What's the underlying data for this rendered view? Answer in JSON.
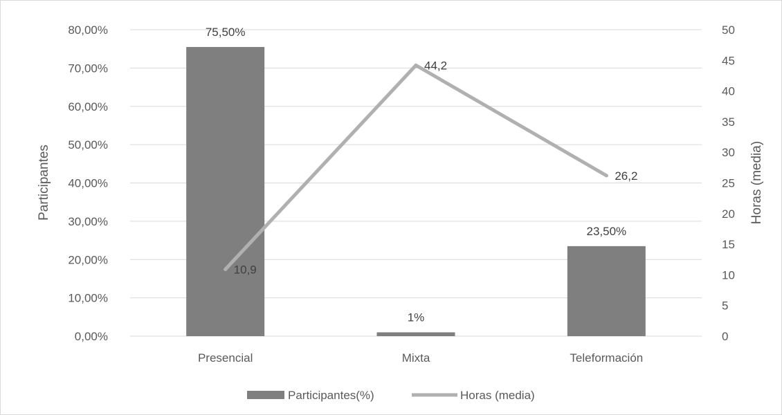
{
  "chart_data": {
    "type": "bar",
    "categories": [
      "Presencial",
      "Mixta",
      "Teleformación"
    ],
    "series": [
      {
        "name": "Participantes(%)",
        "type": "bar",
        "axis": "left",
        "values": [
          75.5,
          1,
          23.5
        ],
        "labels": [
          "75,50%",
          "1%",
          "23,50%"
        ],
        "color": "#7f7f7f"
      },
      {
        "name": "Horas (media)",
        "type": "line",
        "axis": "right",
        "values": [
          10.9,
          44.2,
          26.2
        ],
        "labels": [
          "10,9",
          "44,2",
          "26,2"
        ],
        "color": "#b0b0b0"
      }
    ],
    "title": "",
    "ylabel": "Participantes",
    "y2label": "Horas (media)",
    "ylim": [
      0,
      80
    ],
    "y2lim": [
      0,
      50
    ],
    "yticks": [
      "0,00%",
      "10,00%",
      "20,00%",
      "30,00%",
      "40,00%",
      "50,00%",
      "60,00%",
      "70,00%",
      "80,00%"
    ],
    "y2ticks": [
      "0",
      "5",
      "10",
      "15",
      "20",
      "25",
      "30",
      "35",
      "40",
      "45",
      "50"
    ],
    "grid": true,
    "legend": "bottom"
  }
}
